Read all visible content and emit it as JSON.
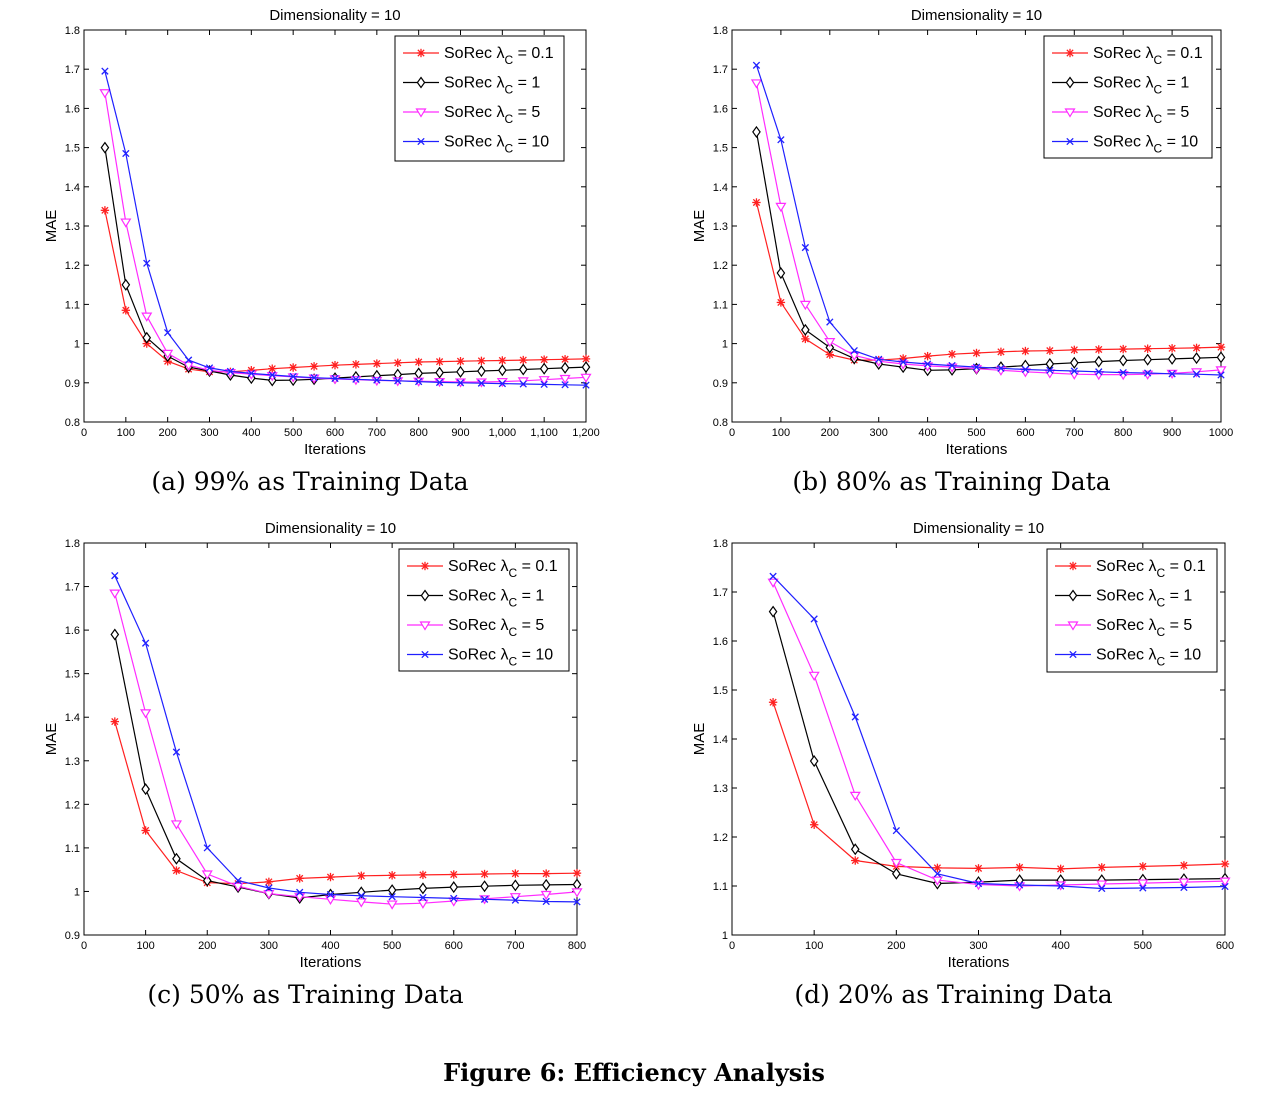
{
  "figure_caption": "Figure 6: Efficiency Analysis",
  "colors": {
    "s0": "#ff2020",
    "s1": "#000000",
    "s2": "#ff2cff",
    "s3": "#2020ff"
  },
  "chart_data": [
    {
      "type": "line",
      "title": "Dimensionality = 10",
      "xlabel": "Iterations",
      "ylabel": "MAE",
      "caption": "(a) 99% as Training Data",
      "xlim": [
        0,
        1200
      ],
      "ylim": [
        0.8,
        1.8
      ],
      "xticks": [
        0,
        100,
        200,
        300,
        400,
        500,
        600,
        700,
        800,
        900,
        1000,
        1100,
        1200
      ],
      "xticklabels": [
        "0",
        "100",
        "200",
        "300",
        "400",
        "500",
        "600",
        "700",
        "800",
        "900",
        "1,000",
        "1,100",
        "1,200"
      ],
      "yticks": [
        0.8,
        0.9,
        1.0,
        1.1,
        1.2,
        1.3,
        1.4,
        1.5,
        1.6,
        1.7,
        1.8
      ],
      "yticklabels": [
        "0.8",
        "0.9",
        "1",
        "1.1",
        "1.2",
        "1.3",
        "1.4",
        "1.5",
        "1.6",
        "1.7",
        "1.8"
      ],
      "legend_position": "top-right",
      "x": [
        50,
        100,
        150,
        200,
        250,
        300,
        350,
        400,
        450,
        500,
        550,
        600,
        650,
        700,
        750,
        800,
        850,
        900,
        950,
        1000,
        1050,
        1100,
        1150,
        1200
      ],
      "series": [
        {
          "name": "SoRec λC = 0.1",
          "marker": "star",
          "values": [
            1.34,
            1.085,
            1.0,
            0.955,
            0.935,
            0.928,
            0.928,
            0.932,
            0.936,
            0.939,
            0.942,
            0.945,
            0.947,
            0.949,
            0.951,
            0.953,
            0.954,
            0.955,
            0.956,
            0.957,
            0.958,
            0.959,
            0.96,
            0.961
          ]
        },
        {
          "name": "SoRec λC = 1",
          "marker": "diamond",
          "values": [
            1.5,
            1.15,
            1.015,
            0.968,
            0.94,
            0.93,
            0.92,
            0.912,
            0.906,
            0.907,
            0.909,
            0.912,
            0.915,
            0.918,
            0.921,
            0.924,
            0.926,
            0.928,
            0.93,
            0.932,
            0.934,
            0.936,
            0.938,
            0.94
          ]
        },
        {
          "name": "SoRec λC = 5",
          "marker": "triangle",
          "values": [
            1.64,
            1.31,
            1.07,
            0.975,
            0.945,
            0.932,
            0.926,
            0.922,
            0.918,
            0.915,
            0.912,
            0.91,
            0.908,
            0.906,
            0.905,
            0.904,
            0.903,
            0.902,
            0.902,
            0.903,
            0.905,
            0.908,
            0.911,
            0.914
          ]
        },
        {
          "name": "SoRec λC = 10",
          "marker": "x",
          "values": [
            1.695,
            1.485,
            1.205,
            1.028,
            0.958,
            0.938,
            0.929,
            0.924,
            0.92,
            0.916,
            0.913,
            0.911,
            0.909,
            0.907,
            0.905,
            0.903,
            0.901,
            0.9,
            0.899,
            0.898,
            0.897,
            0.896,
            0.895,
            0.894
          ]
        }
      ]
    },
    {
      "type": "line",
      "title": "Dimensionality = 10",
      "xlabel": "Iterations",
      "ylabel": "MAE",
      "caption": "(b) 80% as Training Data",
      "xlim": [
        0,
        1000
      ],
      "ylim": [
        0.8,
        1.8
      ],
      "xticks": [
        0,
        100,
        200,
        300,
        400,
        500,
        600,
        700,
        800,
        900,
        1000
      ],
      "xticklabels": [
        "0",
        "100",
        "200",
        "300",
        "400",
        "500",
        "600",
        "700",
        "800",
        "900",
        "1000"
      ],
      "yticks": [
        0.8,
        0.9,
        1.0,
        1.1,
        1.2,
        1.3,
        1.4,
        1.5,
        1.6,
        1.7,
        1.8
      ],
      "yticklabels": [
        "0.8",
        "0.9",
        "1",
        "1.1",
        "1.2",
        "1.3",
        "1.4",
        "1.5",
        "1.6",
        "1.7",
        "1.8"
      ],
      "legend_position": "top-right",
      "x": [
        50,
        100,
        150,
        200,
        250,
        300,
        350,
        400,
        450,
        500,
        550,
        600,
        650,
        700,
        750,
        800,
        850,
        900,
        950,
        1000
      ],
      "series": [
        {
          "name": "SoRec λC = 0.1",
          "marker": "star",
          "values": [
            1.36,
            1.105,
            1.012,
            0.972,
            0.958,
            0.958,
            0.962,
            0.968,
            0.973,
            0.976,
            0.979,
            0.981,
            0.982,
            0.984,
            0.985,
            0.986,
            0.987,
            0.988,
            0.989,
            0.991
          ]
        },
        {
          "name": "SoRec λC = 1",
          "marker": "diamond",
          "values": [
            1.54,
            1.18,
            1.035,
            0.99,
            0.962,
            0.948,
            0.94,
            0.932,
            0.933,
            0.936,
            0.94,
            0.944,
            0.948,
            0.951,
            0.954,
            0.957,
            0.959,
            0.961,
            0.963,
            0.965
          ]
        },
        {
          "name": "SoRec λC = 5",
          "marker": "triangle",
          "values": [
            1.665,
            1.35,
            1.1,
            1.005,
            0.97,
            0.955,
            0.948,
            0.943,
            0.94,
            0.936,
            0.932,
            0.928,
            0.925,
            0.922,
            0.921,
            0.921,
            0.922,
            0.924,
            0.928,
            0.933
          ]
        },
        {
          "name": "SoRec λC = 10",
          "marker": "x",
          "values": [
            1.71,
            1.52,
            1.245,
            1.055,
            0.982,
            0.96,
            0.953,
            0.948,
            0.944,
            0.94,
            0.937,
            0.934,
            0.932,
            0.93,
            0.928,
            0.926,
            0.925,
            0.923,
            0.922,
            0.92
          ]
        }
      ]
    },
    {
      "type": "line",
      "title": "Dimensionality = 10",
      "xlabel": "Iterations",
      "ylabel": "MAE",
      "caption": "(c) 50% as Training Data",
      "xlim": [
        0,
        800
      ],
      "ylim": [
        0.9,
        1.8
      ],
      "xticks": [
        0,
        100,
        200,
        300,
        400,
        500,
        600,
        700,
        800
      ],
      "xticklabels": [
        "0",
        "100",
        "200",
        "300",
        "400",
        "500",
        "600",
        "700",
        "800"
      ],
      "yticks": [
        0.9,
        1.0,
        1.1,
        1.2,
        1.3,
        1.4,
        1.5,
        1.6,
        1.7,
        1.8
      ],
      "yticklabels": [
        "0.9",
        "1",
        "1.1",
        "1.2",
        "1.3",
        "1.4",
        "1.5",
        "1.6",
        "1.7",
        "1.8"
      ],
      "legend_position": "top-right",
      "x": [
        50,
        100,
        150,
        200,
        250,
        300,
        350,
        400,
        450,
        500,
        550,
        600,
        650,
        700,
        750,
        800
      ],
      "series": [
        {
          "name": "SoRec λC = 0.1",
          "marker": "star",
          "values": [
            1.39,
            1.14,
            1.048,
            1.02,
            1.018,
            1.022,
            1.03,
            1.033,
            1.036,
            1.037,
            1.038,
            1.039,
            1.04,
            1.041,
            1.041,
            1.042
          ]
        },
        {
          "name": "SoRec λC = 1",
          "marker": "diamond",
          "values": [
            1.59,
            1.235,
            1.075,
            1.025,
            1.01,
            0.995,
            0.985,
            0.993,
            0.998,
            1.003,
            1.007,
            1.01,
            1.012,
            1.014,
            1.015,
            1.016
          ]
        },
        {
          "name": "SoRec λC = 5",
          "marker": "triangle",
          "values": [
            1.685,
            1.41,
            1.155,
            1.04,
            1.012,
            0.995,
            0.988,
            0.982,
            0.976,
            0.971,
            0.973,
            0.978,
            0.983,
            0.988,
            0.993,
            0.999
          ]
        },
        {
          "name": "SoRec λC = 10",
          "marker": "x",
          "values": [
            1.725,
            1.57,
            1.32,
            1.1,
            1.025,
            1.008,
            0.998,
            0.993,
            0.99,
            0.988,
            0.986,
            0.984,
            0.982,
            0.98,
            0.977,
            0.976
          ]
        }
      ]
    },
    {
      "type": "line",
      "title": "Dimensionality = 10",
      "xlabel": "Iterations",
      "ylabel": "MAE",
      "caption": "(d) 20% as Training Data",
      "xlim": [
        0,
        600
      ],
      "ylim": [
        1.0,
        1.8
      ],
      "xticks": [
        0,
        100,
        200,
        300,
        400,
        500,
        600
      ],
      "xticklabels": [
        "0",
        "100",
        "200",
        "300",
        "400",
        "500",
        "600"
      ],
      "yticks": [
        1.0,
        1.1,
        1.2,
        1.3,
        1.4,
        1.5,
        1.6,
        1.7,
        1.8
      ],
      "yticklabels": [
        "1",
        "1.1",
        "1.2",
        "1.3",
        "1.4",
        "1.5",
        "1.6",
        "1.7",
        "1.8"
      ],
      "legend_position": "top-right",
      "x": [
        50,
        100,
        150,
        200,
        250,
        300,
        350,
        400,
        450,
        500,
        550,
        600
      ],
      "series": [
        {
          "name": "SoRec λC = 0.1",
          "marker": "star",
          "values": [
            1.475,
            1.225,
            1.152,
            1.14,
            1.137,
            1.136,
            1.138,
            1.135,
            1.138,
            1.14,
            1.142,
            1.145
          ]
        },
        {
          "name": "SoRec λC = 1",
          "marker": "diamond",
          "values": [
            1.66,
            1.355,
            1.175,
            1.125,
            1.105,
            1.108,
            1.112,
            1.112,
            1.112,
            1.113,
            1.114,
            1.115
          ]
        },
        {
          "name": "SoRec λC = 5",
          "marker": "triangle",
          "values": [
            1.72,
            1.53,
            1.285,
            1.148,
            1.112,
            1.103,
            1.1,
            1.102,
            1.104,
            1.106,
            1.108,
            1.11
          ]
        },
        {
          "name": "SoRec λC = 10",
          "marker": "x",
          "values": [
            1.732,
            1.645,
            1.445,
            1.213,
            1.125,
            1.105,
            1.102,
            1.1,
            1.095,
            1.096,
            1.097,
            1.099
          ]
        }
      ]
    }
  ]
}
